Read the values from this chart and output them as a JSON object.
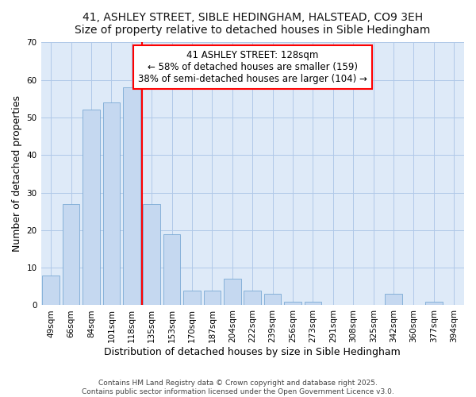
{
  "title1": "41, ASHLEY STREET, SIBLE HEDINGHAM, HALSTEAD, CO9 3EH",
  "title2": "Size of property relative to detached houses in Sible Hedingham",
  "xlabel": "Distribution of detached houses by size in Sible Hedingham",
  "ylabel": "Number of detached properties",
  "categories": [
    "49sqm",
    "66sqm",
    "84sqm",
    "101sqm",
    "118sqm",
    "135sqm",
    "153sqm",
    "170sqm",
    "187sqm",
    "204sqm",
    "222sqm",
    "239sqm",
    "256sqm",
    "273sqm",
    "291sqm",
    "308sqm",
    "325sqm",
    "342sqm",
    "360sqm",
    "377sqm",
    "394sqm"
  ],
  "values": [
    8,
    27,
    52,
    54,
    58,
    27,
    19,
    4,
    4,
    7,
    4,
    3,
    1,
    1,
    0,
    0,
    0,
    3,
    0,
    1,
    0
  ],
  "bar_color": "#c5d8f0",
  "bar_edgecolor": "#7aaad4",
  "bar_width": 0.85,
  "ylim": [
    0,
    70
  ],
  "yticks": [
    0,
    10,
    20,
    30,
    40,
    50,
    60,
    70
  ],
  "redline_x": 4.5,
  "annotation_title": "41 ASHLEY STREET: 128sqm",
  "annotation_line1": "← 58% of detached houses are smaller (159)",
  "annotation_line2": "38% of semi-detached houses are larger (104) →",
  "footnote1": "Contains HM Land Registry data © Crown copyright and database right 2025.",
  "footnote2": "Contains public sector information licensed under the Open Government Licence v3.0.",
  "bg_color": "#ffffff",
  "plot_bg_color": "#deeaf8",
  "grid_color": "#b0c8e8",
  "title_fontsize": 10,
  "axis_label_fontsize": 9,
  "tick_fontsize": 7.5,
  "footnote_fontsize": 6.5,
  "annotation_fontsize": 8.5
}
